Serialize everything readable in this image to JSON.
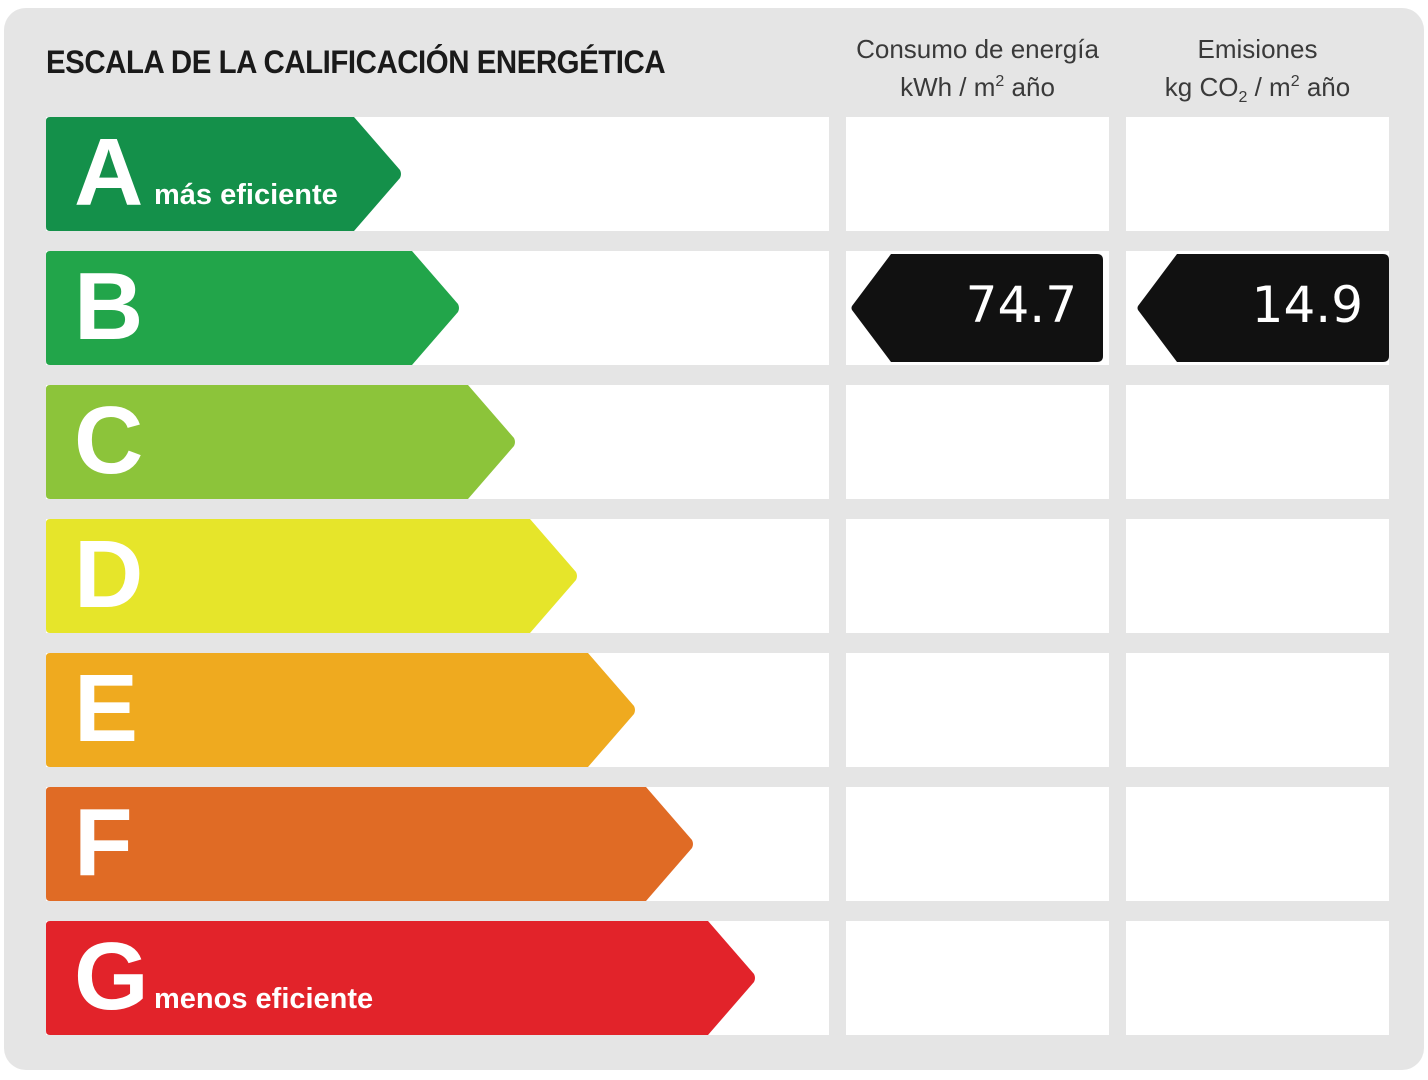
{
  "header": {
    "title": "ESCALA DE LA CALIFICACIÓN ENERGÉTICA",
    "energy_col": {
      "line1": "Consumo de energía",
      "unit_pre": "kWh / m",
      "unit_sup": "2",
      "unit_post": " año"
    },
    "emissions_col": {
      "line1": "Emisiones",
      "unit_pre": "kg CO",
      "unit_sub": "2",
      "unit_mid": " / m",
      "unit_sup": "2",
      "unit_post": " año"
    }
  },
  "scale": [
    {
      "letter": "A",
      "sublabel": "más eficiente",
      "color": "#14904a"
    },
    {
      "letter": "B",
      "sublabel": "",
      "color": "#22a54a"
    },
    {
      "letter": "C",
      "sublabel": "",
      "color": "#8cc43a"
    },
    {
      "letter": "D",
      "sublabel": "",
      "color": "#e6e52a"
    },
    {
      "letter": "E",
      "sublabel": "",
      "color": "#efaa1f"
    },
    {
      "letter": "F",
      "sublabel": "",
      "color": "#e06b25"
    },
    {
      "letter": "G",
      "sublabel": "menos eficiente",
      "color": "#e2232a"
    }
  ],
  "rating": {
    "class": "B",
    "energy_value": "74.7",
    "emissions_value": "14.9",
    "marker_color": "#111111"
  }
}
